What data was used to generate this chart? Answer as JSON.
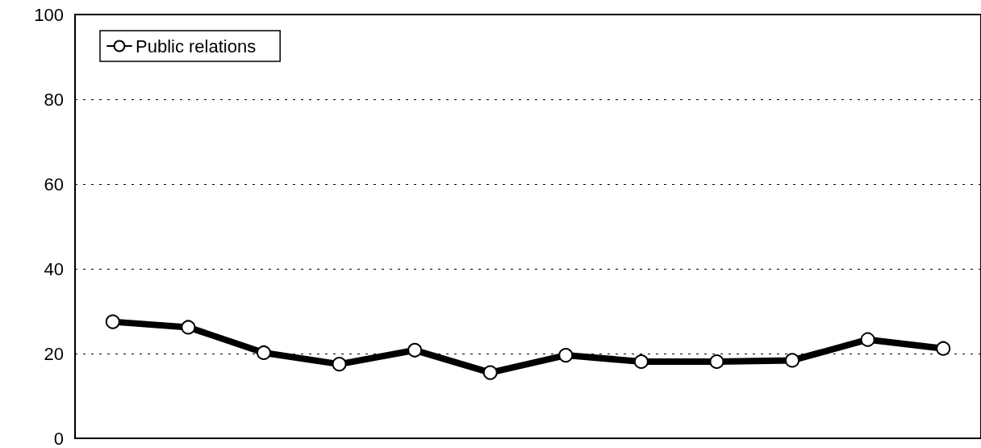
{
  "chart_data": {
    "type": "line",
    "categories": [
      null,
      null,
      null,
      null,
      null,
      null,
      null,
      null,
      null,
      null,
      null,
      null
    ],
    "series": [
      {
        "name": "Public relations",
        "color": "#000000",
        "values": [
          27.5,
          26.2,
          20.2,
          17.5,
          20.8,
          15.5,
          19.6,
          18.1,
          18.1,
          18.4,
          23.3,
          21.2
        ]
      }
    ],
    "ylim": [
      0,
      100
    ],
    "yticks": [
      0,
      20,
      40,
      60,
      80,
      100
    ],
    "grid": "y",
    "legend": "top left",
    "marker": "circle",
    "line_style": "solid",
    "tick_labels": "y"
  }
}
